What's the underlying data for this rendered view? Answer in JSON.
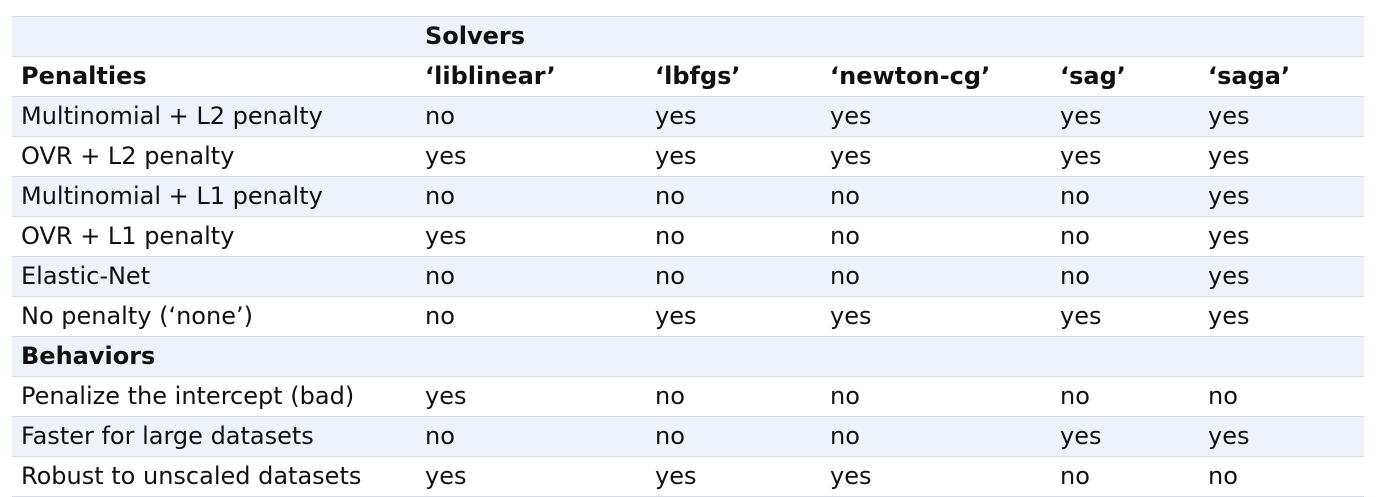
{
  "table": {
    "super_header": [
      "",
      "Solvers",
      "",
      "",
      "",
      ""
    ],
    "header": [
      "Penalties",
      "‘liblinear’",
      "‘lbfgs’",
      "‘newton-cg’",
      "‘sag’",
      "‘saga’"
    ],
    "penalty_rows": [
      [
        "Multinomial + L2 penalty",
        "no",
        "yes",
        "yes",
        "yes",
        "yes"
      ],
      [
        "OVR + L2 penalty",
        "yes",
        "yes",
        "yes",
        "yes",
        "yes"
      ],
      [
        "Multinomial + L1 penalty",
        "no",
        "no",
        "no",
        "no",
        "yes"
      ],
      [
        "OVR + L1 penalty",
        "yes",
        "no",
        "no",
        "no",
        "yes"
      ],
      [
        "Elastic-Net",
        "no",
        "no",
        "no",
        "no",
        "yes"
      ],
      [
        "No penalty (‘none’)",
        "no",
        "yes",
        "yes",
        "yes",
        "yes"
      ]
    ],
    "section_label": "Behaviors",
    "behavior_rows": [
      [
        "Penalize the intercept (bad)",
        "yes",
        "no",
        "no",
        "no",
        "no"
      ],
      [
        "Faster for large datasets",
        "no",
        "no",
        "no",
        "yes",
        "yes"
      ],
      [
        "Robust to unscaled datasets",
        "yes",
        "yes",
        "yes",
        "no",
        "no"
      ]
    ]
  }
}
